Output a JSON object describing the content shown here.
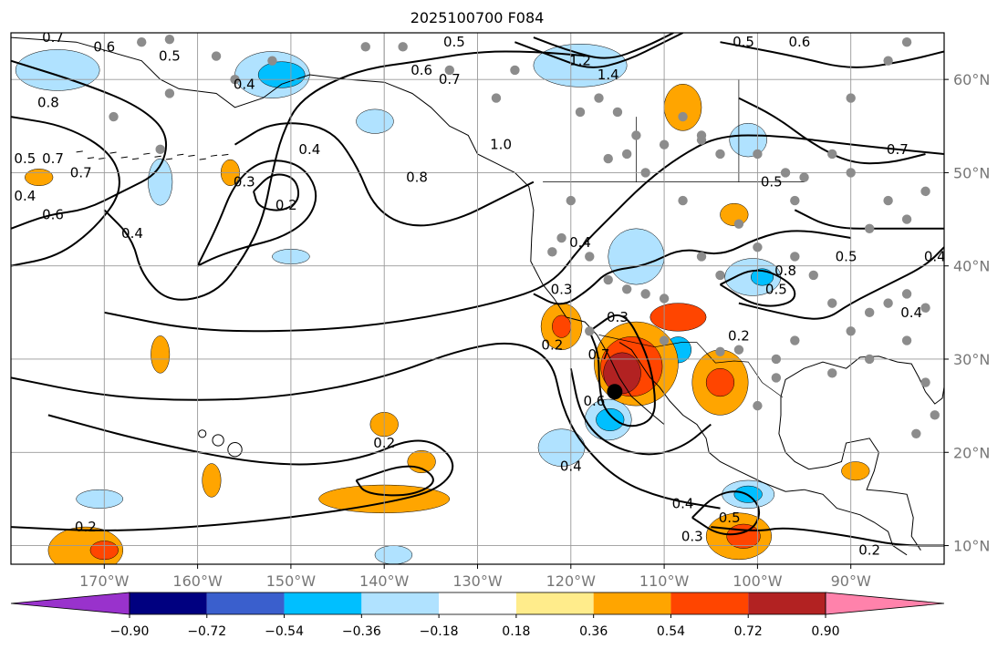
{
  "chart_data": {
    "type": "heatmap",
    "title": "2025100700 F084",
    "map": {
      "lon_range": [
        -180,
        -80
      ],
      "lat_range": [
        8,
        65
      ],
      "lon_ticks": [
        {
          "value": -170,
          "label": "170°W"
        },
        {
          "value": -160,
          "label": "160°W"
        },
        {
          "value": -150,
          "label": "150°W"
        },
        {
          "value": -140,
          "label": "140°W"
        },
        {
          "value": -130,
          "label": "130°W"
        },
        {
          "value": -120,
          "label": "120°W"
        },
        {
          "value": -110,
          "label": "110°W"
        },
        {
          "value": -100,
          "label": "100°W"
        },
        {
          "value": -90,
          "label": "90°W"
        }
      ],
      "lat_ticks": [
        {
          "value": 10,
          "label": "10°N"
        },
        {
          "value": 20,
          "label": "20°N"
        },
        {
          "value": 30,
          "label": "30°N"
        },
        {
          "value": 40,
          "label": "40°N"
        },
        {
          "value": 50,
          "label": "50°N"
        },
        {
          "value": 60,
          "label": "60°N"
        }
      ],
      "grid": true,
      "marked_point": {
        "lon": -115.3,
        "lat": 26.5
      }
    },
    "colorbar": {
      "levels": [
        -0.9,
        -0.72,
        -0.54,
        -0.36,
        -0.18,
        0.18,
        0.36,
        0.54,
        0.72,
        0.9
      ],
      "tick_labels": [
        "−0.90",
        "−0.72",
        "−0.54",
        "−0.36",
        "−0.18",
        "0.18",
        "0.36",
        "0.54",
        "0.72",
        "0.90"
      ],
      "colors": [
        "#9932CC",
        "#000080",
        "#3A5FCD",
        "#00BFFF",
        "#B0E2FF",
        "#FFFFFF",
        "#FFEC8B",
        "#FFA500",
        "#FF4500",
        "#B22222",
        "#FF82AB"
      ],
      "extend": "both"
    },
    "shaded_anomalies": [
      {
        "lon": -175,
        "lat": 61,
        "rx": 4.5,
        "ry": 2.2,
        "level": -0.36
      },
      {
        "lon": -152,
        "lat": 60.5,
        "rx": 4,
        "ry": 2.5,
        "level": -0.36
      },
      {
        "lon": -151,
        "lat": 60.5,
        "rx": 2.5,
        "ry": 1.4,
        "level": -0.54
      },
      {
        "lon": -119,
        "lat": 61.5,
        "rx": 5,
        "ry": 2.3,
        "level": -0.36
      },
      {
        "lon": -164,
        "lat": 49,
        "rx": 1.3,
        "ry": 2.5,
        "level": -0.36
      },
      {
        "lon": -141,
        "lat": 55.5,
        "rx": 2,
        "ry": 1.3,
        "level": -0.36
      },
      {
        "lon": -113,
        "lat": 41,
        "rx": 3,
        "ry": 3,
        "level": -0.36
      },
      {
        "lon": -101,
        "lat": 53.5,
        "rx": 2,
        "ry": 1.8,
        "level": -0.36
      },
      {
        "lon": -100.5,
        "lat": 38.8,
        "rx": 3,
        "ry": 2,
        "level": -0.36
      },
      {
        "lon": -99.5,
        "lat": 38.8,
        "rx": 1.2,
        "ry": 0.9,
        "level": -0.54
      },
      {
        "lon": -116,
        "lat": 23.5,
        "rx": 2.5,
        "ry": 2.2,
        "level": -0.36
      },
      {
        "lon": -115.8,
        "lat": 23.5,
        "rx": 1.5,
        "ry": 1.2,
        "level": -0.54
      },
      {
        "lon": -121,
        "lat": 20.5,
        "rx": 2.5,
        "ry": 2,
        "level": -0.36
      },
      {
        "lon": -101,
        "lat": 15.5,
        "rx": 2.8,
        "ry": 1.5,
        "level": -0.36
      },
      {
        "lon": -101,
        "lat": 15.5,
        "rx": 1.5,
        "ry": 0.9,
        "level": -0.54
      },
      {
        "lon": -108.5,
        "lat": 31,
        "rx": 1.4,
        "ry": 1.4,
        "level": -0.54
      },
      {
        "lon": -170.5,
        "lat": 15,
        "rx": 2.5,
        "ry": 1,
        "level": -0.36
      },
      {
        "lon": -139,
        "lat": 9,
        "rx": 2,
        "ry": 1,
        "level": -0.36
      },
      {
        "lon": -150,
        "lat": 41,
        "rx": 2,
        "ry": 0.8,
        "level": -0.36
      },
      {
        "lon": -177,
        "lat": 49.5,
        "rx": 1.5,
        "ry": 0.9,
        "level": 0.36
      },
      {
        "lon": -156.5,
        "lat": 50,
        "rx": 1,
        "ry": 1.4,
        "level": 0.36
      },
      {
        "lon": -108,
        "lat": 57,
        "rx": 2,
        "ry": 2.5,
        "level": 0.36
      },
      {
        "lon": -102.5,
        "lat": 45.5,
        "rx": 1.5,
        "ry": 1.2,
        "level": 0.36
      },
      {
        "lon": -164,
        "lat": 30.5,
        "rx": 1,
        "ry": 2,
        "level": 0.36
      },
      {
        "lon": -121,
        "lat": 33.5,
        "rx": 2.2,
        "ry": 2.5,
        "level": 0.36
      },
      {
        "lon": -121,
        "lat": 33.5,
        "rx": 1,
        "ry": 1.2,
        "level": 0.54
      },
      {
        "lon": -113,
        "lat": 29.5,
        "rx": 4.5,
        "ry": 4.5,
        "level": 0.36
      },
      {
        "lon": -113.5,
        "lat": 29.2,
        "rx": 3.3,
        "ry": 3.2,
        "level": 0.54
      },
      {
        "lon": -114.5,
        "lat": 28.5,
        "rx": 2,
        "ry": 2.2,
        "level": 0.72
      },
      {
        "lon": -108.5,
        "lat": 34.5,
        "rx": 3,
        "ry": 1.5,
        "level": 0.54
      },
      {
        "lon": -104,
        "lat": 27.5,
        "rx": 3,
        "ry": 3.5,
        "level": 0.36
      },
      {
        "lon": -104,
        "lat": 27.5,
        "rx": 1.5,
        "ry": 1.5,
        "level": 0.54
      },
      {
        "lon": -140,
        "lat": 23,
        "rx": 1.5,
        "ry": 1.3,
        "level": 0.36
      },
      {
        "lon": -136,
        "lat": 19,
        "rx": 1.5,
        "ry": 1.2,
        "level": 0.36
      },
      {
        "lon": -158.5,
        "lat": 17,
        "rx": 1,
        "ry": 1.8,
        "level": 0.36
      },
      {
        "lon": -140,
        "lat": 15,
        "rx": 7,
        "ry": 1.5,
        "level": 0.36
      },
      {
        "lon": -172,
        "lat": 9.5,
        "rx": 4,
        "ry": 2.5,
        "level": 0.36
      },
      {
        "lon": -170,
        "lat": 9.5,
        "rx": 1.5,
        "ry": 1,
        "level": 0.54
      },
      {
        "lon": -102,
        "lat": 11,
        "rx": 3.5,
        "ry": 2.5,
        "level": 0.36
      },
      {
        "lon": -101.5,
        "lat": 11,
        "rx": 1.8,
        "ry": 1.3,
        "level": 0.54
      },
      {
        "lon": -89.5,
        "lat": 18,
        "rx": 1.5,
        "ry": 1,
        "level": 0.36
      }
    ],
    "contour_labels": [
      {
        "lon": -175.5,
        "lat": 64.5,
        "text": "0.7"
      },
      {
        "lon": -170,
        "lat": 63.5,
        "text": "0.6"
      },
      {
        "lon": -163,
        "lat": 62.5,
        "text": "0.5"
      },
      {
        "lon": -155,
        "lat": 59.5,
        "text": "0.4"
      },
      {
        "lon": -176,
        "lat": 57.5,
        "text": "0.8"
      },
      {
        "lon": -175.5,
        "lat": 51.5,
        "text": "0.7"
      },
      {
        "lon": -178.5,
        "lat": 51.5,
        "text": "0.5"
      },
      {
        "lon": -178.5,
        "lat": 47.5,
        "text": "0.4"
      },
      {
        "lon": -175.5,
        "lat": 45.5,
        "text": "0.6"
      },
      {
        "lon": -172.5,
        "lat": 50,
        "text": "0.7"
      },
      {
        "lon": -167,
        "lat": 43.5,
        "text": "0.4"
      },
      {
        "lon": -155,
        "lat": 49,
        "text": "0.3"
      },
      {
        "lon": -150.5,
        "lat": 46.5,
        "text": "0.2"
      },
      {
        "lon": -148,
        "lat": 52.5,
        "text": "0.4"
      },
      {
        "lon": -136,
        "lat": 61,
        "text": "0.6"
      },
      {
        "lon": -133,
        "lat": 60,
        "text": "0.7"
      },
      {
        "lon": -132.5,
        "lat": 64,
        "text": "0.5"
      },
      {
        "lon": -127.5,
        "lat": 53,
        "text": "1.0"
      },
      {
        "lon": -136.5,
        "lat": 49.5,
        "text": "0.8"
      },
      {
        "lon": -119,
        "lat": 62,
        "text": "1.2"
      },
      {
        "lon": -116,
        "lat": 60.5,
        "text": "1.4"
      },
      {
        "lon": -101.5,
        "lat": 64,
        "text": "0.5"
      },
      {
        "lon": -95.5,
        "lat": 64,
        "text": "0.6"
      },
      {
        "lon": -85,
        "lat": 52.5,
        "text": "0.7"
      },
      {
        "lon": -119,
        "lat": 42.5,
        "text": "0.4"
      },
      {
        "lon": -121,
        "lat": 37.5,
        "text": "0.3"
      },
      {
        "lon": -115,
        "lat": 34.5,
        "text": "0.3"
      },
      {
        "lon": -122,
        "lat": 31.5,
        "text": "0.2"
      },
      {
        "lon": -117,
        "lat": 30.5,
        "text": "0.7"
      },
      {
        "lon": -117.5,
        "lat": 25.5,
        "text": "0.6"
      },
      {
        "lon": -120,
        "lat": 18.5,
        "text": "0.4"
      },
      {
        "lon": -108,
        "lat": 14.5,
        "text": "0.4"
      },
      {
        "lon": -103,
        "lat": 13,
        "text": "0.5"
      },
      {
        "lon": -107,
        "lat": 11,
        "text": "0.3"
      },
      {
        "lon": -102,
        "lat": 32.5,
        "text": "0.2"
      },
      {
        "lon": -98,
        "lat": 37.5,
        "text": "0.5"
      },
      {
        "lon": -97,
        "lat": 39.5,
        "text": "0.8"
      },
      {
        "lon": -90.5,
        "lat": 41,
        "text": "0.5"
      },
      {
        "lon": -98.5,
        "lat": 49,
        "text": "0.5"
      },
      {
        "lon": -81,
        "lat": 41,
        "text": "0.4"
      },
      {
        "lon": -83.5,
        "lat": 35,
        "text": "0.4"
      },
      {
        "lon": -140,
        "lat": 21,
        "text": "0.2"
      },
      {
        "lon": -172,
        "lat": 12,
        "text": "0.2"
      },
      {
        "lon": -88,
        "lat": 9.5,
        "text": "0.2"
      }
    ]
  }
}
